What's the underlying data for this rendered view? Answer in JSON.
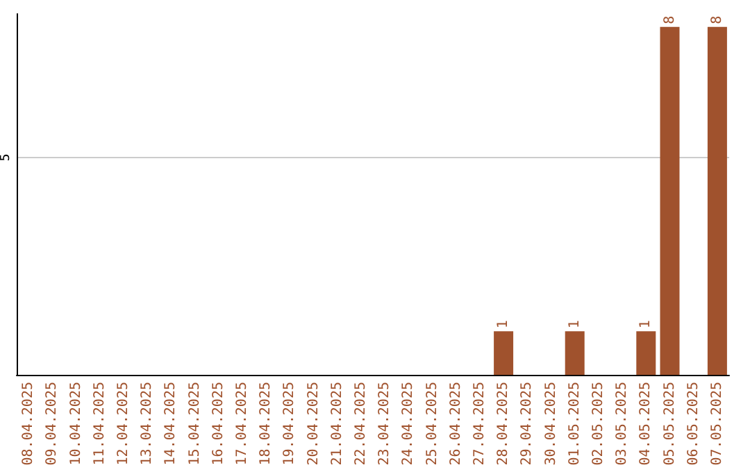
{
  "chart_data": {
    "type": "bar",
    "categories": [
      "08.04.2025",
      "09.04.2025",
      "10.04.2025",
      "11.04.2025",
      "12.04.2025",
      "13.04.2025",
      "14.04.2025",
      "15.04.2025",
      "16.04.2025",
      "17.04.2025",
      "18.04.2025",
      "19.04.2025",
      "20.04.2025",
      "21.04.2025",
      "22.04.2025",
      "23.04.2025",
      "24.04.2025",
      "25.04.2025",
      "26.04.2025",
      "27.04.2025",
      "28.04.2025",
      "29.04.2025",
      "30.04.2025",
      "01.05.2025",
      "02.05.2025",
      "03.05.2025",
      "04.05.2025",
      "05.05.2025",
      "06.05.2025",
      "07.05.2025"
    ],
    "values": [
      null,
      null,
      null,
      null,
      null,
      null,
      null,
      null,
      null,
      null,
      null,
      null,
      null,
      null,
      null,
      null,
      null,
      null,
      null,
      null,
      1,
      null,
      null,
      1,
      null,
      null,
      1,
      8,
      null,
      8
    ],
    "data_labels": true,
    "color": "#a0522d",
    "ylim": [
      0,
      8.3
    ],
    "yticks": [
      5
    ],
    "grid": "y"
  }
}
